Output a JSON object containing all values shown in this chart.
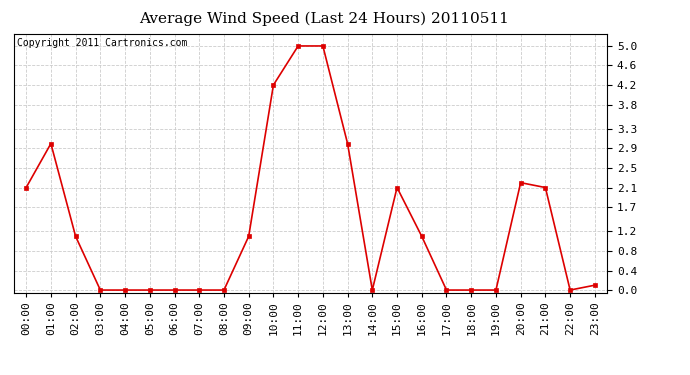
{
  "title": "Average Wind Speed (Last 24 Hours) 20110511",
  "copyright_text": "Copyright 2011 Cartronics.com",
  "x_labels": [
    "00:00",
    "01:00",
    "02:00",
    "03:00",
    "04:00",
    "05:00",
    "06:00",
    "07:00",
    "08:00",
    "09:00",
    "10:00",
    "11:00",
    "12:00",
    "13:00",
    "14:00",
    "15:00",
    "16:00",
    "17:00",
    "18:00",
    "19:00",
    "20:00",
    "21:00",
    "22:00",
    "23:00"
  ],
  "y_values": [
    2.1,
    3.0,
    1.1,
    0.0,
    0.0,
    0.0,
    0.0,
    0.0,
    0.0,
    1.1,
    4.2,
    5.0,
    5.0,
    3.0,
    0.0,
    2.1,
    1.1,
    0.0,
    0.0,
    0.0,
    2.2,
    2.1,
    0.0,
    0.1
  ],
  "y_ticks": [
    0.0,
    0.4,
    0.8,
    1.2,
    1.7,
    2.1,
    2.5,
    2.9,
    3.3,
    3.8,
    4.2,
    4.6,
    5.0
  ],
  "ylim": [
    -0.05,
    5.25
  ],
  "line_color": "#dd0000",
  "marker_color": "#dd0000",
  "bg_color": "#ffffff",
  "plot_bg_color": "#ffffff",
  "grid_color": "#cccccc",
  "title_fontsize": 11,
  "copyright_fontsize": 7,
  "tick_fontsize": 8,
  "figwidth": 6.9,
  "figheight": 3.75,
  "dpi": 100
}
